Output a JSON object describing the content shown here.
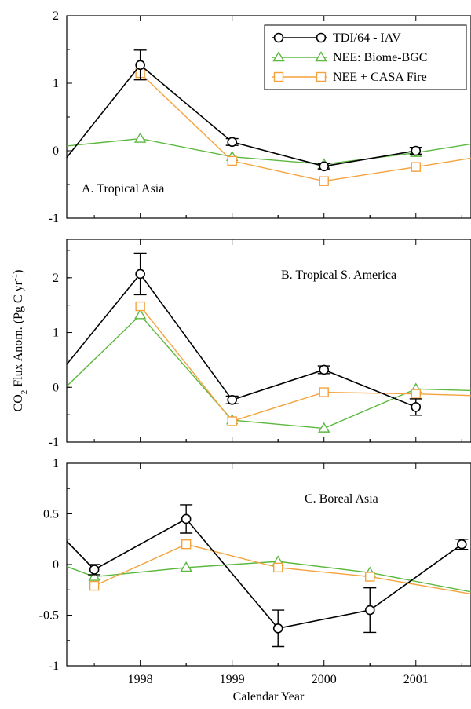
{
  "ylabel_main": "CO",
  "ylabel_sub": "2",
  "ylabel_rest": " Flux Anom. (Pg C yr",
  "ylabel_sup": "-1",
  "ylabel_close": ")",
  "xlabel": "Calendar Year",
  "colors": {
    "tdi": "#000000",
    "biome": "#5cb83e",
    "casa": "#f5a23c"
  },
  "legend": [
    {
      "key": "tdi",
      "label": "TDI/64 - IAV",
      "marker": "circle"
    },
    {
      "key": "biome",
      "label": "NEE: Biome-BGC",
      "marker": "triangle"
    },
    {
      "key": "casa",
      "label": "NEE + CASA Fire",
      "marker": "square"
    }
  ],
  "chart_data": [
    {
      "type": "line",
      "panel_label": "A. Tropical Asia",
      "xlim": [
        1997.2,
        2001.6
      ],
      "ylim": [
        -1,
        2
      ],
      "x_ticks": [
        "1998",
        "1999",
        "2000",
        "2001"
      ],
      "y_tick_values": [
        -1,
        0,
        1,
        2
      ],
      "y_tick_labels": [
        "-1",
        "0",
        "1",
        "2"
      ],
      "series": [
        {
          "key": "tdi",
          "name": "TDI/64 - IAV",
          "marker": "circle",
          "x": [
            1997.2,
            1998,
            1999,
            2000,
            2001
          ],
          "y": [
            -0.1,
            1.27,
            0.13,
            -0.23,
            0.0
          ],
          "err": [
            null,
            0.22,
            0.05,
            0.04,
            0.05
          ],
          "show_marker": [
            false,
            true,
            true,
            true,
            true
          ]
        },
        {
          "key": "biome",
          "name": "NEE: Biome-BGC",
          "marker": "triangle",
          "x": [
            1997.2,
            1998,
            1999,
            2000,
            2001,
            2001.6
          ],
          "y": [
            0.07,
            0.18,
            -0.09,
            -0.2,
            -0.03,
            0.1
          ],
          "show_marker": [
            false,
            true,
            true,
            true,
            true,
            false
          ]
        },
        {
          "key": "casa",
          "name": "NEE + CASA Fire",
          "marker": "square",
          "x": [
            1998,
            1999,
            2000,
            2001,
            2001.6
          ],
          "y": [
            1.15,
            -0.15,
            -0.45,
            -0.24,
            -0.11
          ],
          "show_marker": [
            true,
            true,
            true,
            true,
            false
          ]
        }
      ]
    },
    {
      "type": "line",
      "panel_label": "B. Tropical S. America",
      "xlim": [
        1997.2,
        2001.6
      ],
      "ylim": [
        -1,
        2.7
      ],
      "x_ticks": [
        "1998",
        "1999",
        "2000",
        "2001"
      ],
      "y_tick_values": [
        -1,
        0,
        1,
        2
      ],
      "y_tick_labels": [
        "-1",
        "0",
        "1",
        "2"
      ],
      "series": [
        {
          "key": "tdi",
          "name": "TDI/64 - IAV",
          "marker": "circle",
          "x": [
            1997.2,
            1998,
            1999,
            2000,
            2001
          ],
          "y": [
            0.42,
            2.07,
            -0.23,
            0.32,
            -0.36
          ],
          "err": [
            null,
            0.38,
            0.07,
            0.07,
            0.15
          ],
          "show_marker": [
            false,
            true,
            true,
            true,
            true
          ]
        },
        {
          "key": "biome",
          "name": "NEE: Biome-BGC",
          "marker": "triangle",
          "x": [
            1997.2,
            1998,
            1999,
            2000,
            2001,
            2001.6
          ],
          "y": [
            0.02,
            1.32,
            -0.6,
            -0.75,
            -0.03,
            -0.06
          ],
          "show_marker": [
            false,
            true,
            true,
            true,
            true,
            false
          ]
        },
        {
          "key": "casa",
          "name": "NEE + CASA Fire",
          "marker": "square",
          "x": [
            1998,
            1999,
            2000,
            2001,
            2001.6
          ],
          "y": [
            1.48,
            -0.62,
            -0.09,
            -0.12,
            -0.15
          ],
          "show_marker": [
            true,
            true,
            true,
            true,
            false
          ]
        }
      ]
    },
    {
      "type": "line",
      "panel_label": "C. Boreal Asia",
      "xlim": [
        1997.2,
        2001.6
      ],
      "ylim": [
        -1,
        1
      ],
      "x_ticks": [
        "1998",
        "1999",
        "2000",
        "2001"
      ],
      "y_tick_values": [
        -1,
        -0.5,
        0,
        0.5,
        1
      ],
      "y_tick_labels": [
        "-1",
        "-0.5",
        "0",
        "0.5",
        "1"
      ],
      "series": [
        {
          "key": "tdi",
          "name": "TDI/64 - IAV",
          "marker": "circle",
          "x": [
            1997.2,
            1997.5,
            1998.5,
            1999.5,
            2000.5,
            2001.5
          ],
          "y": [
            0.23,
            -0.05,
            0.45,
            -0.63,
            -0.45,
            0.2
          ],
          "err": [
            null,
            0.05,
            0.14,
            0.18,
            0.22,
            0.05
          ],
          "show_marker": [
            false,
            true,
            true,
            true,
            true,
            true
          ]
        },
        {
          "key": "biome",
          "name": "NEE: Biome-BGC",
          "marker": "triangle",
          "x": [
            1997.2,
            1997.5,
            1998.5,
            1999.5,
            2000.5,
            2001.6
          ],
          "y": [
            -0.02,
            -0.12,
            -0.03,
            0.03,
            -0.08,
            -0.27
          ],
          "show_marker": [
            false,
            true,
            true,
            true,
            true,
            false
          ]
        },
        {
          "key": "casa",
          "name": "NEE + CASA Fire",
          "marker": "square",
          "x": [
            1997.5,
            1998.5,
            1999.5,
            2000.5,
            2001.6
          ],
          "y": [
            -0.21,
            0.2,
            -0.03,
            -0.12,
            -0.29
          ],
          "show_marker": [
            true,
            true,
            true,
            true,
            false
          ]
        }
      ]
    }
  ]
}
